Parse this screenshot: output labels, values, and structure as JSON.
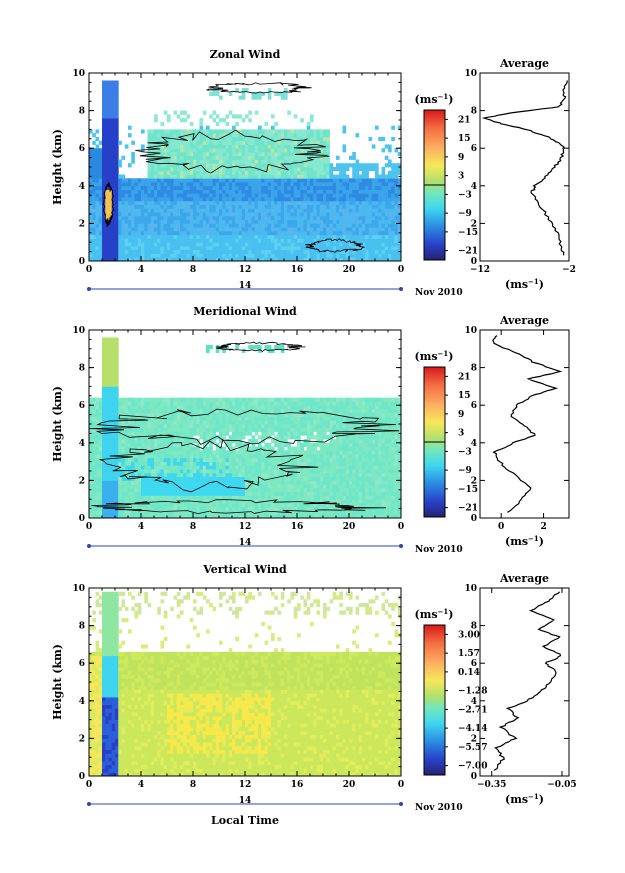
{
  "chart_data": [
    {
      "type": "heatmap",
      "title": "Zonal Wind",
      "ylabel": "Height (km)",
      "x_ticks": [
        "0",
        "4",
        "8",
        "12",
        "16",
        "20",
        "0"
      ],
      "y_ticks": [
        "0",
        "2",
        "4",
        "6",
        "8",
        "10"
      ],
      "xlim": [
        0,
        24
      ],
      "ylim": [
        0,
        10
      ],
      "date_axis": {
        "day": "14",
        "month_year": "Nov 2010"
      },
      "colorbar": {
        "unit_base": "(ms",
        "unit_exp": "−1",
        "unit_close": ")",
        "labels": [
          "21",
          "15",
          "9",
          "3",
          "−3",
          "−9",
          "−15",
          "−21"
        ]
      },
      "average": {
        "title": "Average",
        "xlabel_base": "(ms",
        "xlabel_exp": "−1",
        "xlabel_close": ")",
        "x_ticks": [
          "−12",
          "−2"
        ],
        "xlim": [
          -12,
          -2
        ],
        "y_ticks": [
          "0",
          "2",
          "4",
          "6",
          "8",
          "10"
        ],
        "profile": [
          [
            -2.6,
            0.3
          ],
          [
            -2.9,
            0.8
          ],
          [
            -3.3,
            1.5
          ],
          [
            -4.2,
            2.2
          ],
          [
            -5.3,
            3.0
          ],
          [
            -6.2,
            3.6
          ],
          [
            -5.8,
            4.0
          ],
          [
            -4.6,
            4.5
          ],
          [
            -3.6,
            5.0
          ],
          [
            -2.8,
            5.5
          ],
          [
            -2.6,
            6.0
          ],
          [
            -3.2,
            6.3
          ],
          [
            -4.4,
            6.6
          ],
          [
            -6.8,
            7.0
          ],
          [
            -9.6,
            7.3
          ],
          [
            -11.6,
            7.6
          ],
          [
            -8.2,
            7.9
          ],
          [
            -3.2,
            8.2
          ],
          [
            -2.4,
            8.6
          ],
          [
            -2.6,
            9.0
          ],
          [
            -2.2,
            9.6
          ]
        ]
      }
    },
    {
      "type": "heatmap",
      "title": "Meridional Wind",
      "ylabel": "Height (km)",
      "x_ticks": [
        "0",
        "4",
        "8",
        "12",
        "16",
        "20",
        "0"
      ],
      "y_ticks": [
        "0",
        "2",
        "4",
        "6",
        "8",
        "10"
      ],
      "xlim": [
        0,
        24
      ],
      "ylim": [
        0,
        10
      ],
      "date_axis": {
        "day": "14",
        "month_year": "Nov 2010"
      },
      "colorbar": {
        "unit_base": "(ms",
        "unit_exp": "−1",
        "unit_close": ")",
        "labels": [
          "21",
          "15",
          "9",
          "3",
          "−3",
          "−9",
          "−15",
          "−21"
        ]
      },
      "average": {
        "title": "Average",
        "xlabel_base": "(ms",
        "xlabel_exp": "−1",
        "xlabel_close": ")",
        "x_ticks": [
          "0",
          "2"
        ],
        "xlim": [
          -1,
          3.2
        ],
        "y_ticks": [
          "0",
          "2",
          "4",
          "6",
          "8",
          "10"
        ],
        "profile": [
          [
            0.3,
            0.3
          ],
          [
            1.0,
            1.0
          ],
          [
            1.4,
            1.6
          ],
          [
            0.5,
            2.4
          ],
          [
            -0.1,
            3.0
          ],
          [
            -0.3,
            3.5
          ],
          [
            0.6,
            4.0
          ],
          [
            1.6,
            4.4
          ],
          [
            1.1,
            4.9
          ],
          [
            0.5,
            5.4
          ],
          [
            0.7,
            6.0
          ],
          [
            1.5,
            6.5
          ],
          [
            2.6,
            6.9
          ],
          [
            1.3,
            7.4
          ],
          [
            2.8,
            7.8
          ],
          [
            1.5,
            8.3
          ],
          [
            0.7,
            8.8
          ],
          [
            -0.4,
            9.3
          ],
          [
            -0.2,
            9.7
          ]
        ]
      }
    },
    {
      "type": "heatmap",
      "title": "Vertical Wind",
      "xlabel": "Local Time",
      "ylabel": "Height (km)",
      "x_ticks": [
        "0",
        "4",
        "8",
        "12",
        "16",
        "20",
        "0"
      ],
      "y_ticks": [
        "0",
        "2",
        "4",
        "6",
        "8",
        "10"
      ],
      "xlim": [
        0,
        24
      ],
      "ylim": [
        0,
        10
      ],
      "date_axis": {
        "day": "14",
        "month_year": "Nov 2010"
      },
      "colorbar": {
        "unit_base": "(ms",
        "unit_exp": "−1",
        "unit_close": ")",
        "labels": [
          "3.00",
          "1.57",
          "0.14",
          "−1.28",
          "−2.71",
          "−4.14",
          "−5.57",
          "−7.00"
        ]
      },
      "average": {
        "title": "Average",
        "xlabel_base": "(ms",
        "xlabel_exp": "−1",
        "xlabel_close": ")",
        "x_ticks": [
          "−0.35",
          "−0.05"
        ],
        "xlim": [
          -0.4,
          -0.02
        ],
        "y_ticks": [
          "0",
          "2",
          "4",
          "6",
          "8",
          "10"
        ],
        "profile": [
          [
            -0.34,
            0.3
          ],
          [
            -0.3,
            0.9
          ],
          [
            -0.33,
            1.5
          ],
          [
            -0.25,
            2.0
          ],
          [
            -0.31,
            2.6
          ],
          [
            -0.24,
            3.1
          ],
          [
            -0.28,
            3.6
          ],
          [
            -0.2,
            4.0
          ],
          [
            -0.14,
            4.5
          ],
          [
            -0.1,
            5.0
          ],
          [
            -0.07,
            5.5
          ],
          [
            -0.12,
            6.0
          ],
          [
            -0.05,
            6.4
          ],
          [
            -0.13,
            6.9
          ],
          [
            -0.06,
            7.4
          ],
          [
            -0.15,
            7.8
          ],
          [
            -0.09,
            8.3
          ],
          [
            -0.18,
            8.8
          ],
          [
            -0.11,
            9.3
          ],
          [
            -0.06,
            9.8
          ]
        ]
      }
    }
  ]
}
